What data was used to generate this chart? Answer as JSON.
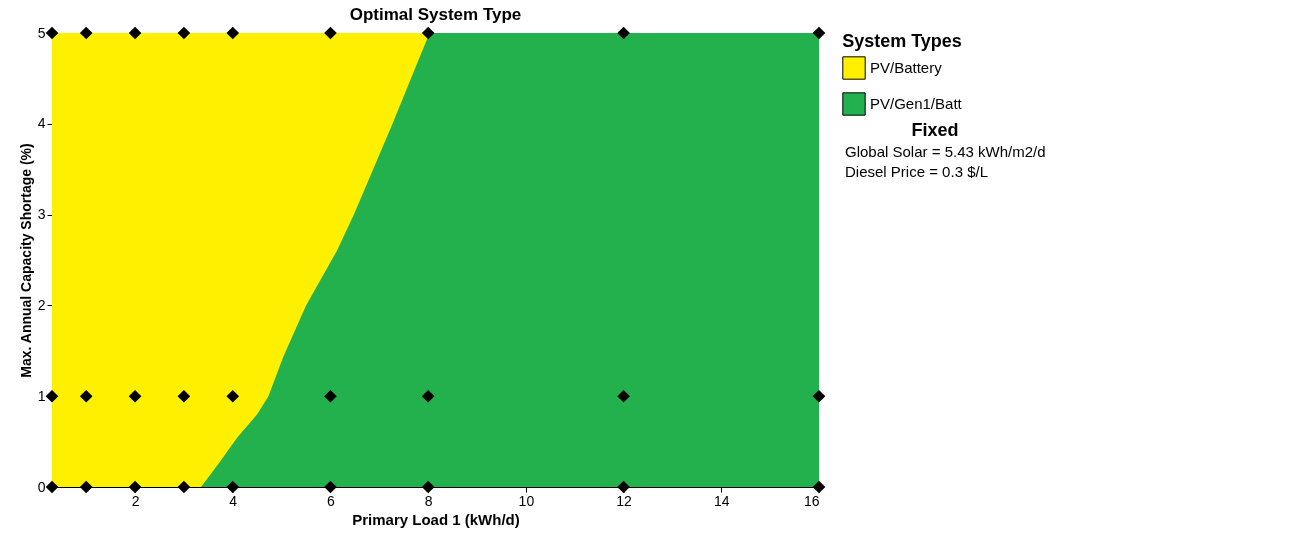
{
  "chart_data": {
    "type": "area",
    "title": "Optimal System Type",
    "xlabel": "Primary Load 1 (kWh/d)",
    "ylabel": "Max. Annual Capacity Shortage (%)",
    "legend_title": "System Types",
    "series": [
      {
        "type": "scatter",
        "color": "#000000",
        "marker": "diamond",
        "x": [
          0.3,
          1,
          2,
          3,
          4,
          6,
          8,
          12,
          16,
          0.3,
          1,
          2,
          3,
          4,
          6,
          8,
          12,
          16,
          0.3,
          1,
          2,
          3,
          4,
          6,
          8,
          12,
          16
        ],
        "values": [
          0,
          0,
          0,
          0,
          0,
          0,
          0,
          0,
          0,
          1,
          1,
          1,
          1,
          1,
          1,
          1,
          1,
          1,
          5,
          5,
          5,
          5,
          5,
          5,
          5,
          5,
          5
        ]
      },
      {
        "name": "PV/Battery",
        "color": "#fff000",
        "x": [
          0.3,
          8.03
        ],
        "values": [
          5,
          5
        ]
      },
      {
        "name": "PV/Gen1/Batt",
        "color": "#23b14d",
        "x": [
          3.35,
          3.7,
          4.1,
          4.5,
          4.73,
          5.03,
          5.5,
          6.13,
          6.48,
          7.27,
          7.8,
          8.03,
          16
        ],
        "values": [
          0,
          0.25,
          0.55,
          0.8,
          1,
          1.43,
          2,
          2.6,
          3,
          4,
          4.7,
          5,
          5
        ]
      }
    ],
    "xlim": [
      0.3,
      16
    ],
    "xticks": [
      2,
      4,
      6,
      8,
      10,
      12,
      14,
      16
    ],
    "ylim": [
      0,
      5
    ],
    "yticks": [
      0,
      1,
      2,
      3,
      4,
      5
    ],
    "grid": false,
    "legend": "right",
    "annotations": [
      "Fixed",
      "Global Solar = 5.43 kWh/m2/d",
      "Diesel Price = 0.3 $/L"
    ]
  }
}
